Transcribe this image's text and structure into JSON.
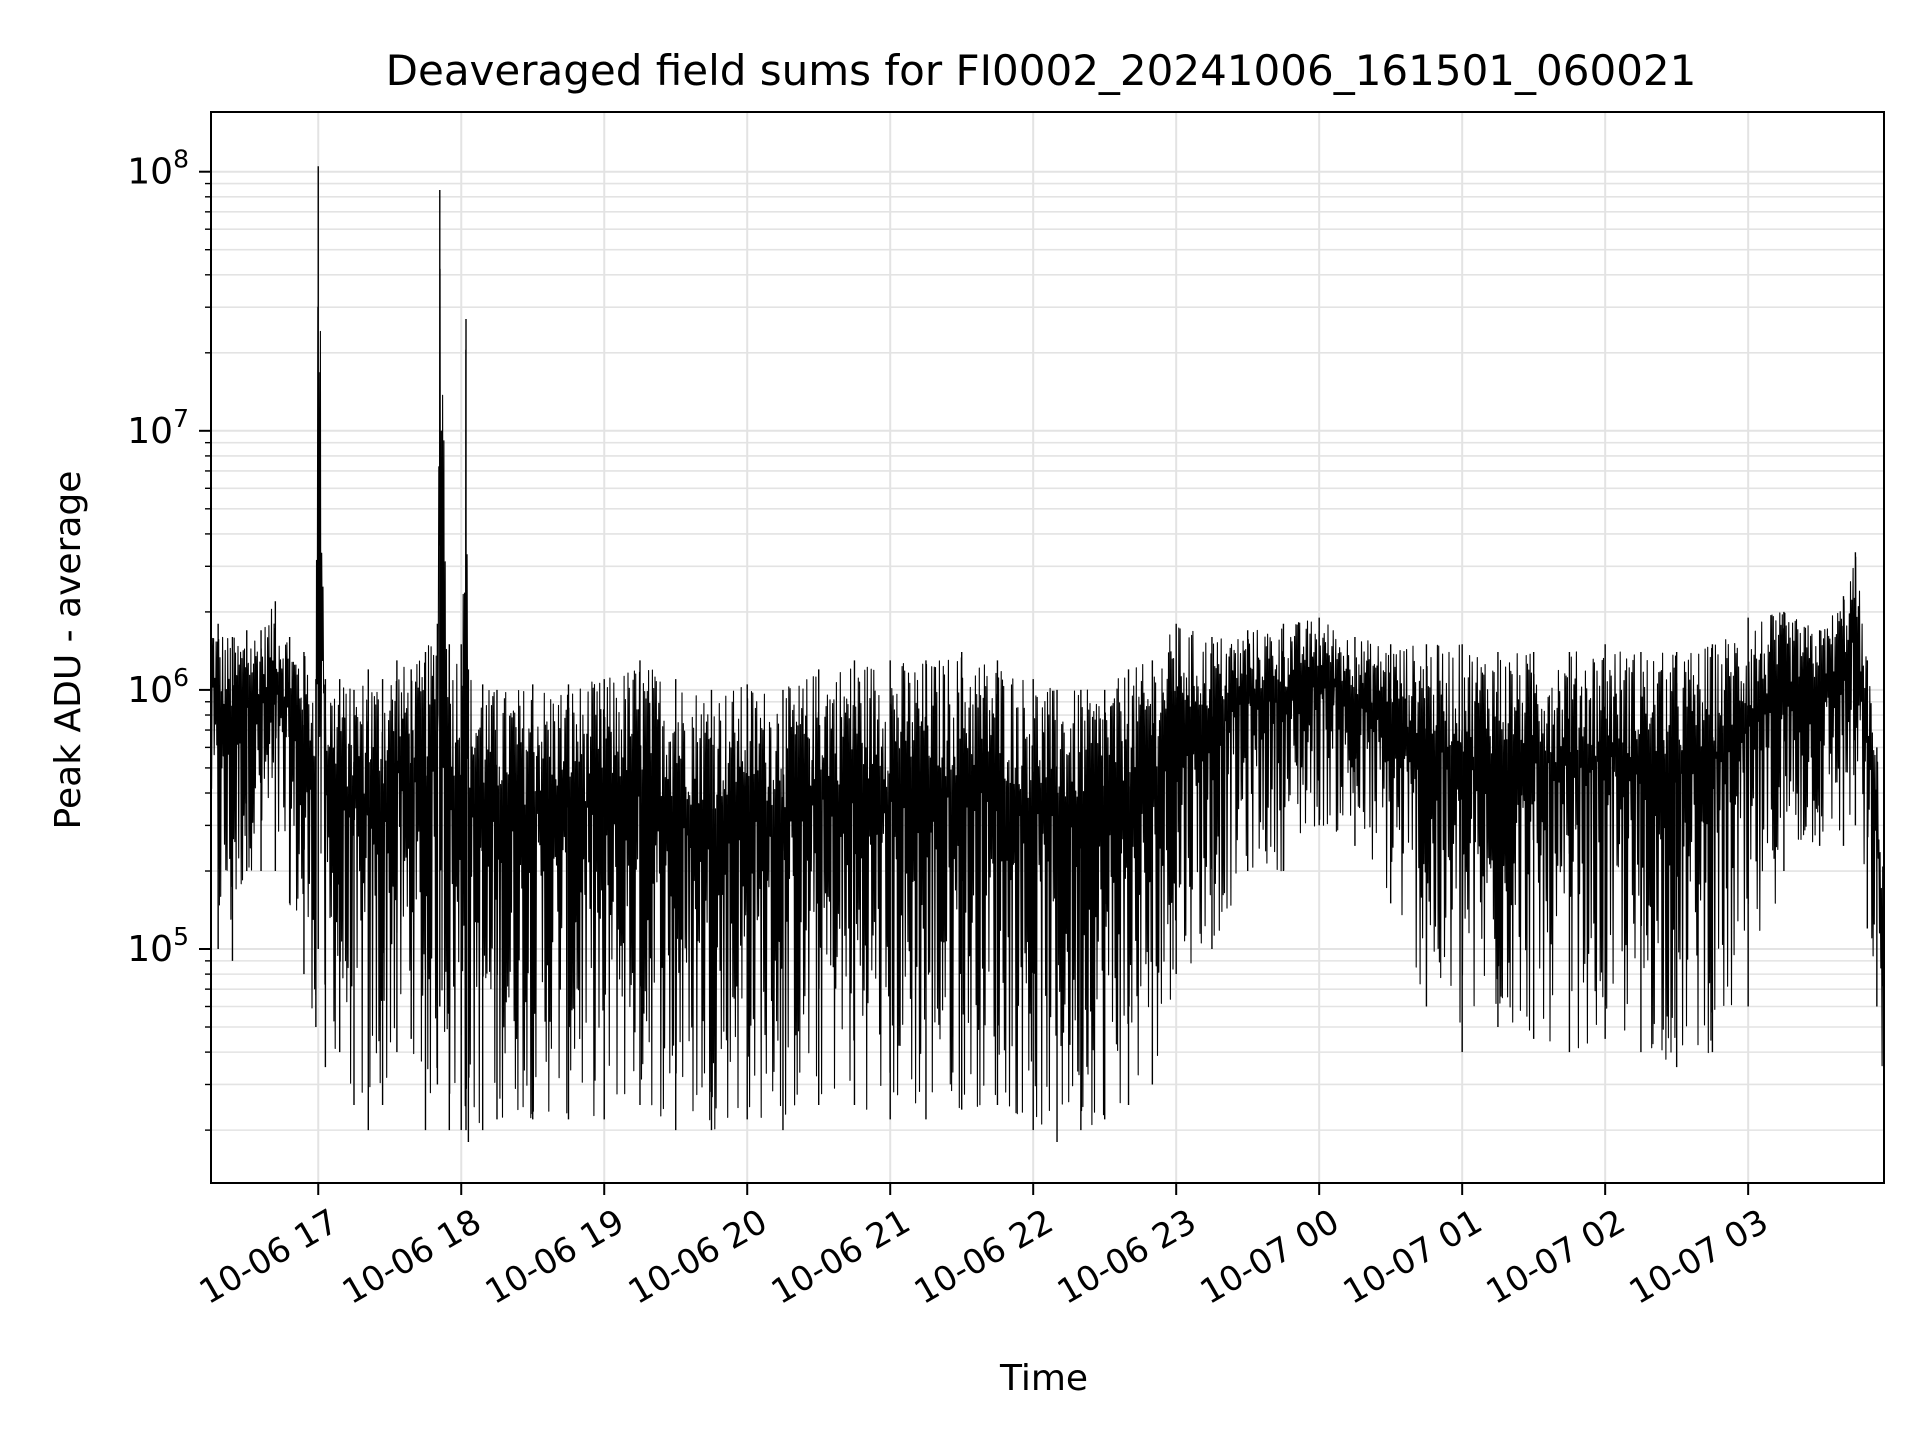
{
  "chart_data": {
    "type": "line",
    "title": "Deaveraged field sums for FI0002_20241006_161501_060021",
    "xlabel": "Time",
    "ylabel": "Peak ADU - average",
    "yscale": "log",
    "grid": true,
    "legend": "none",
    "line_color": "#000000",
    "grid_color": "#e3e3e3",
    "xlim": [
      "2024-10-06 16:15",
      "2024-10-07 03:57"
    ],
    "ylim": [
      12500,
      170000000
    ],
    "x_ticks": [
      {
        "value": "2024-10-06 17:00",
        "label": "10-06 17"
      },
      {
        "value": "2024-10-06 18:00",
        "label": "10-06 18"
      },
      {
        "value": "2024-10-06 19:00",
        "label": "10-06 19"
      },
      {
        "value": "2024-10-06 20:00",
        "label": "10-06 20"
      },
      {
        "value": "2024-10-06 21:00",
        "label": "10-06 21"
      },
      {
        "value": "2024-10-06 22:00",
        "label": "10-06 22"
      },
      {
        "value": "2024-10-06 23:00",
        "label": "10-06 23"
      },
      {
        "value": "2024-10-07 00:00",
        "label": "10-07 00"
      },
      {
        "value": "2024-10-07 01:00",
        "label": "10-07 01"
      },
      {
        "value": "2024-10-07 02:00",
        "label": "10-07 02"
      },
      {
        "value": "2024-10-07 03:00",
        "label": "10-07 03"
      }
    ],
    "y_ticks": [
      {
        "value": 100000,
        "base": "10",
        "exp": "5"
      },
      {
        "value": 1000000,
        "base": "10",
        "exp": "6"
      },
      {
        "value": 10000000,
        "base": "10",
        "exp": "7"
      },
      {
        "value": 100000000,
        "base": "10",
        "exp": "8"
      }
    ],
    "series": [
      {
        "x": [
          "2024-10-06 16:15",
          "2024-10-06 16:18",
          "2024-10-06 16:24",
          "2024-10-06 16:30",
          "2024-10-06 16:36",
          "2024-10-06 16:42",
          "2024-10-06 16:48",
          "2024-10-06 16:54",
          "2024-10-06 16:59",
          "2024-10-06 17:00",
          "2024-10-06 17:03",
          "2024-10-06 17:09",
          "2024-10-06 17:15",
          "2024-10-06 17:21",
          "2024-10-06 17:27",
          "2024-10-06 17:33",
          "2024-10-06 17:39",
          "2024-10-06 17:45",
          "2024-10-06 17:50",
          "2024-10-06 17:51",
          "2024-10-06 17:55",
          "2024-10-06 18:00",
          "2024-10-06 18:02",
          "2024-10-06 18:03",
          "2024-10-06 18:09",
          "2024-10-06 18:15",
          "2024-10-06 18:30",
          "2024-10-06 18:45",
          "2024-10-06 19:00",
          "2024-10-06 19:15",
          "2024-10-06 19:30",
          "2024-10-06 19:45",
          "2024-10-06 20:00",
          "2024-10-06 20:15",
          "2024-10-06 20:30",
          "2024-10-06 20:45",
          "2024-10-06 21:00",
          "2024-10-06 21:15",
          "2024-10-06 21:30",
          "2024-10-06 21:45",
          "2024-10-06 22:00",
          "2024-10-06 22:10",
          "2024-10-06 22:20",
          "2024-10-06 22:30",
          "2024-10-06 22:40",
          "2024-10-06 22:50",
          "2024-10-06 23:00",
          "2024-10-06 23:15",
          "2024-10-06 23:30",
          "2024-10-06 23:45",
          "2024-10-07 00:00",
          "2024-10-07 00:15",
          "2024-10-07 00:30",
          "2024-10-07 00:45",
          "2024-10-07 01:00",
          "2024-10-07 01:15",
          "2024-10-07 01:30",
          "2024-10-07 01:45",
          "2024-10-07 02:00",
          "2024-10-07 02:15",
          "2024-10-07 02:30",
          "2024-10-07 02:45",
          "2024-10-07 03:00",
          "2024-10-07 03:15",
          "2024-10-07 03:30",
          "2024-10-07 03:40",
          "2024-10-07 03:45",
          "2024-10-07 03:50",
          "2024-10-07 03:54",
          "2024-10-07 03:57"
        ],
        "high": [
          1900000,
          1800000,
          1600000,
          1700000,
          1700000,
          2200000,
          1600000,
          1400000,
          1100000,
          105000000,
          1100000,
          1100000,
          1000000,
          1200000,
          1100000,
          1300000,
          1200000,
          1400000,
          1800000,
          85000000,
          1500000,
          1500000,
          27000000,
          1200000,
          1050000,
          1000000,
          1050000,
          1050000,
          1100000,
          1300000,
          1100000,
          1000000,
          1050000,
          1000000,
          1200000,
          1300000,
          1300000,
          1300000,
          1400000,
          1300000,
          1100000,
          1000000,
          1000000,
          1000000,
          1200000,
          1300000,
          1800000,
          1600000,
          1700000,
          1800000,
          1900000,
          1600000,
          1500000,
          1500000,
          1500000,
          1400000,
          1400000,
          1400000,
          1500000,
          1400000,
          1400000,
          1500000,
          1900000,
          2000000,
          1700000,
          2300000,
          3400000,
          1300000,
          600000,
          200000
        ],
        "low": [
          300000,
          100000,
          90000,
          200000,
          200000,
          200000,
          150000,
          80000,
          50000,
          100000,
          35000,
          40000,
          25000,
          20000,
          25000,
          40000,
          45000,
          20000,
          30000,
          60000,
          20000,
          20000,
          20000,
          18000,
          20000,
          22000,
          22000,
          22000,
          22000,
          25000,
          20000,
          20000,
          22000,
          20000,
          25000,
          25000,
          22000,
          22000,
          24000,
          25000,
          20000,
          18000,
          20000,
          22000,
          25000,
          30000,
          80000,
          100000,
          200000,
          200000,
          300000,
          250000,
          150000,
          60000,
          40000,
          50000,
          45000,
          40000,
          45000,
          40000,
          35000,
          40000,
          60000,
          200000,
          250000,
          250000,
          300000,
          120000,
          60000,
          22000
        ]
      }
    ]
  }
}
